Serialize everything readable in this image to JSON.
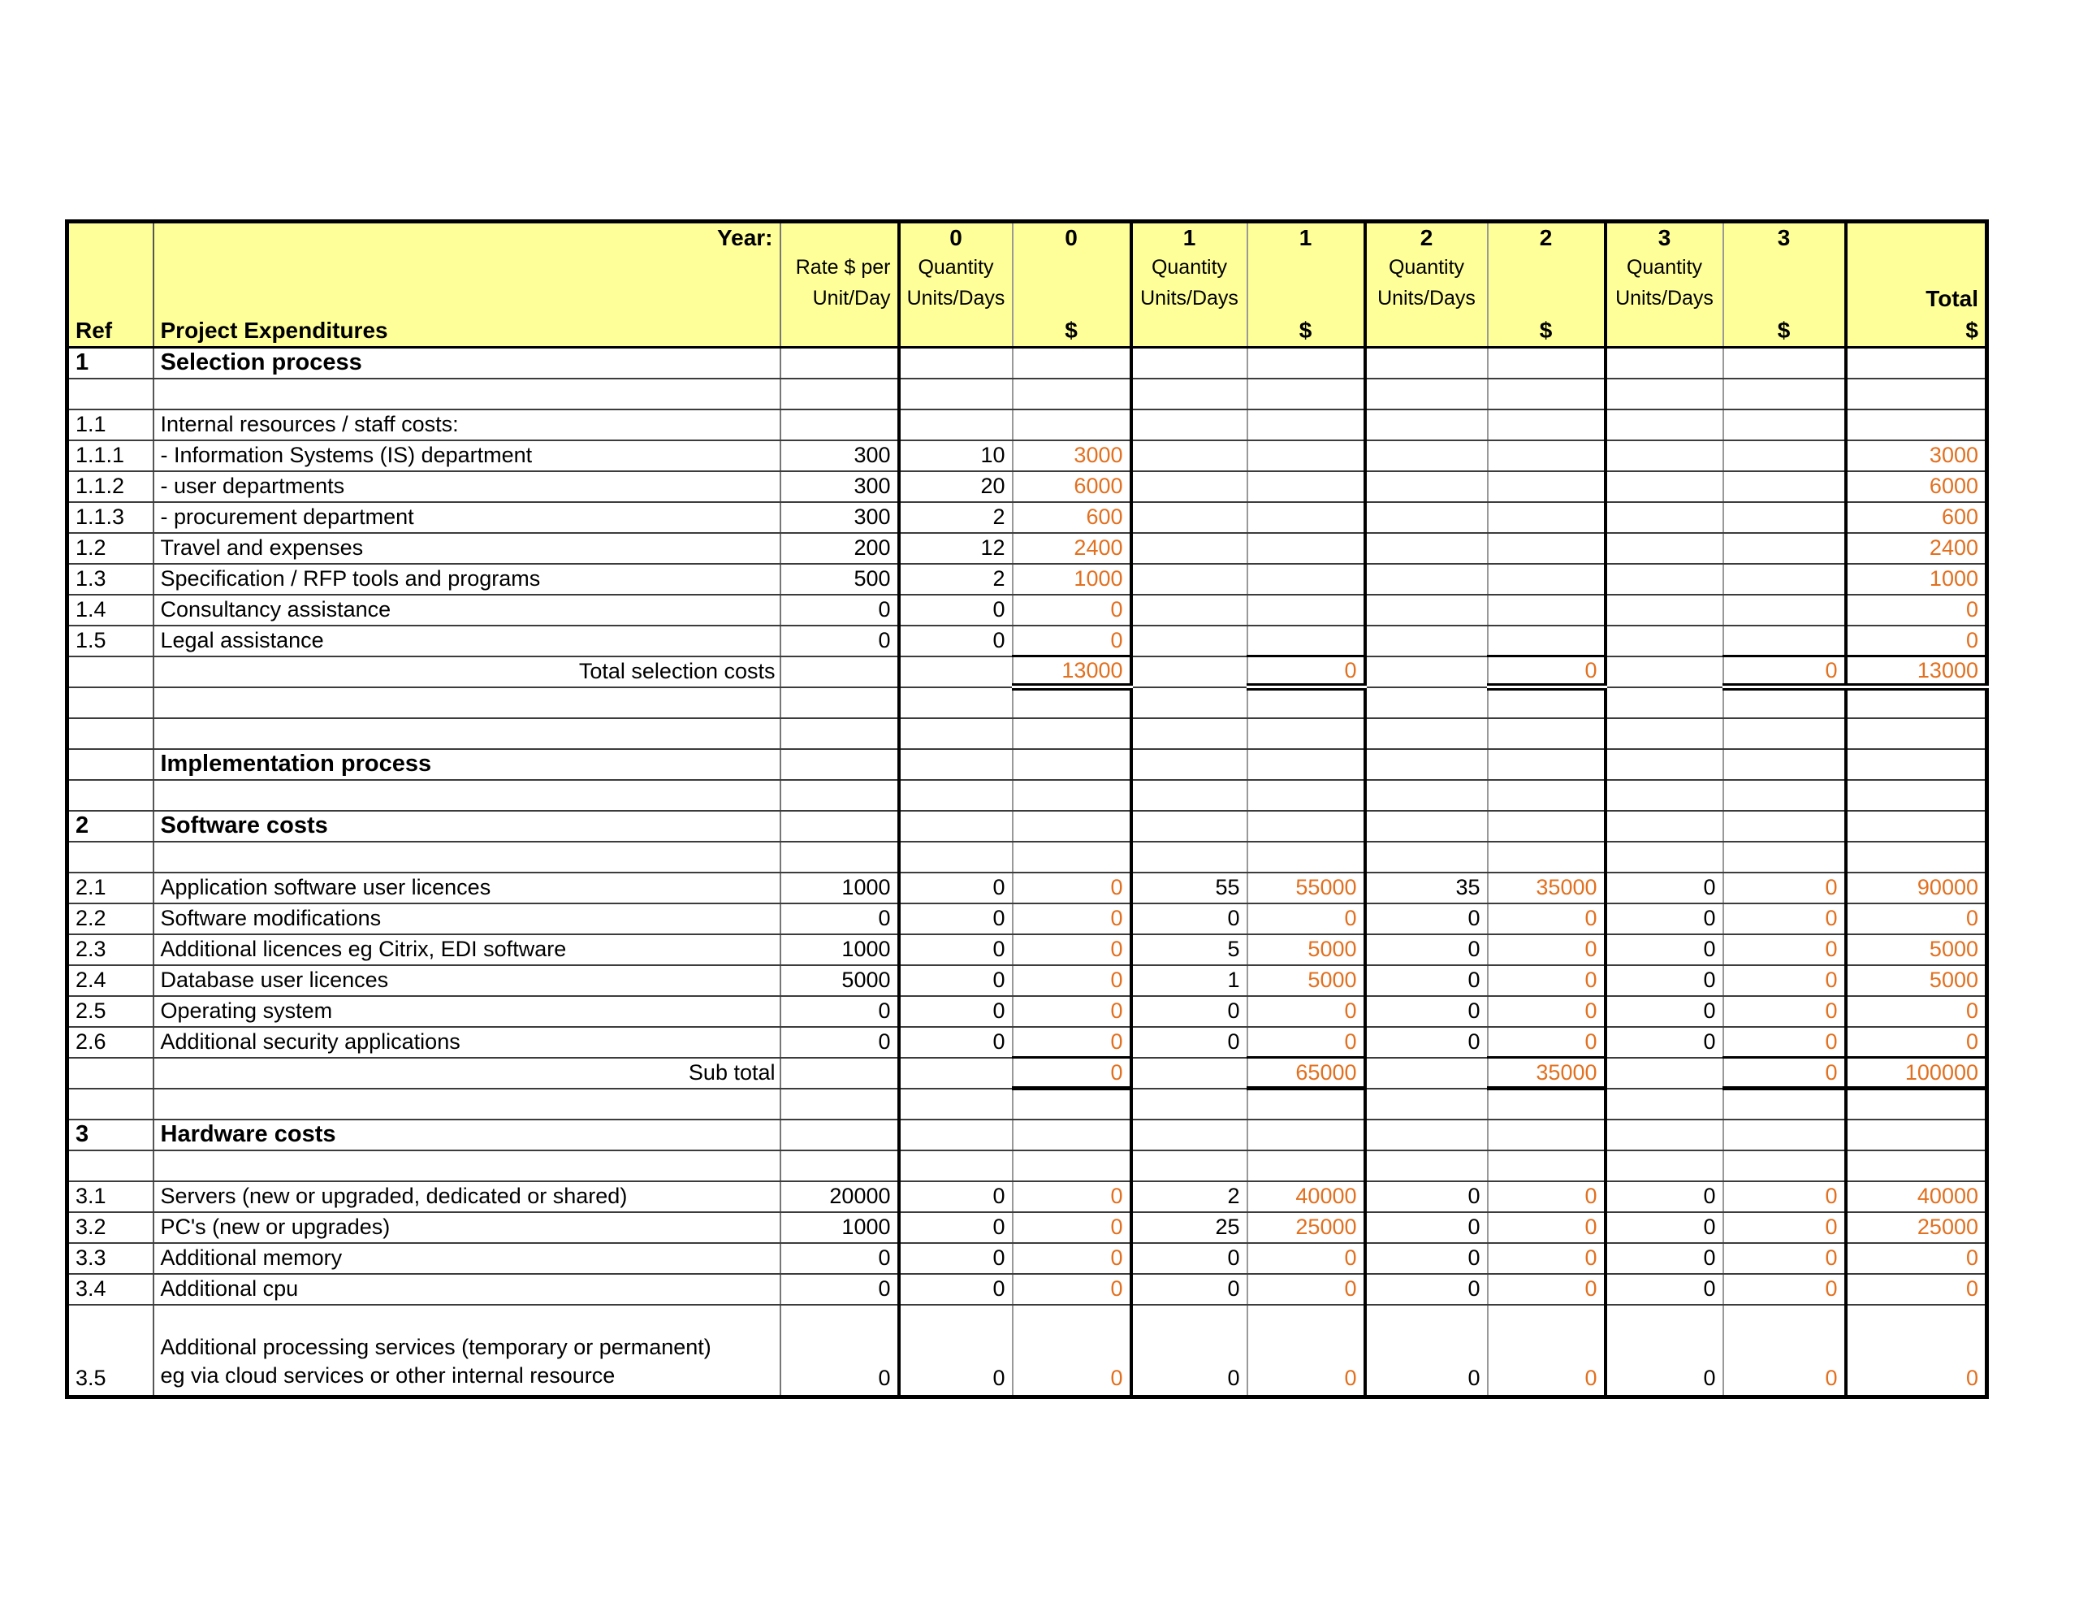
{
  "colors": {
    "header_bg": "#FFFF99",
    "amount": "#E2701F"
  },
  "header": {
    "year_label": "Year:",
    "year_numbers": [
      "0",
      "0",
      "1",
      "1",
      "2",
      "2",
      "3",
      "3"
    ],
    "rate_line1": "Rate $ per",
    "rate_line2": "Unit/Day",
    "quantity_line1": "Quantity",
    "quantity_line2": "Units/Days",
    "dollar": "$",
    "total_label": "Total",
    "ref_label": "Ref",
    "expenditures_label": "Project Expenditures"
  },
  "table": {
    "rows": [
      {
        "kind": "section",
        "ref": "1",
        "desc": "Selection process",
        "rate": "",
        "y0q": "",
        "y0d": "",
        "y1q": "",
        "y1d": "",
        "y2q": "",
        "y2d": "",
        "y3q": "",
        "y3d": "",
        "total": ""
      },
      {
        "kind": "empty",
        "ref": "",
        "desc": "",
        "rate": "",
        "y0q": "",
        "y0d": "",
        "y1q": "",
        "y1d": "",
        "y2q": "",
        "y2d": "",
        "y3q": "",
        "y3d": "",
        "total": ""
      },
      {
        "kind": "plain",
        "ref": "1.1",
        "desc": "Internal resources / staff costs:",
        "rate": "",
        "y0q": "",
        "y0d": "",
        "y1q": "",
        "y1d": "",
        "y2q": "",
        "y2d": "",
        "y3q": "",
        "y3d": "",
        "total": ""
      },
      {
        "kind": "item",
        "ref": "1.1.1",
        "desc": "- Information Systems (IS) department",
        "rate": "300",
        "y0q": "10",
        "y0d": "3000",
        "y1q": "",
        "y1d": "",
        "y2q": "",
        "y2d": "",
        "y3q": "",
        "y3d": "",
        "total": "3000"
      },
      {
        "kind": "item",
        "ref": "1.1.2",
        "desc": "- user departments",
        "rate": "300",
        "y0q": "20",
        "y0d": "6000",
        "y1q": "",
        "y1d": "",
        "y2q": "",
        "y2d": "",
        "y3q": "",
        "y3d": "",
        "total": "6000"
      },
      {
        "kind": "item",
        "ref": "1.1.3",
        "desc": "- procurement department",
        "rate": "300",
        "y0q": "2",
        "y0d": "600",
        "y1q": "",
        "y1d": "",
        "y2q": "",
        "y2d": "",
        "y3q": "",
        "y3d": "",
        "total": "600"
      },
      {
        "kind": "item",
        "ref": "1.2",
        "desc": "Travel and expenses",
        "rate": "200",
        "y0q": "12",
        "y0d": "2400",
        "y1q": "",
        "y1d": "",
        "y2q": "",
        "y2d": "",
        "y3q": "",
        "y3d": "",
        "total": "2400"
      },
      {
        "kind": "item",
        "ref": "1.3",
        "desc": "Specification / RFP tools and programs",
        "rate": "500",
        "y0q": "2",
        "y0d": "1000",
        "y1q": "",
        "y1d": "",
        "y2q": "",
        "y2d": "",
        "y3q": "",
        "y3d": "",
        "total": "1000"
      },
      {
        "kind": "item",
        "ref": "1.4",
        "desc": "Consultancy assistance",
        "rate": "0",
        "y0q": "0",
        "y0d": "0",
        "y1q": "",
        "y1d": "",
        "y2q": "",
        "y2d": "",
        "y3q": "",
        "y3d": "",
        "total": "0"
      },
      {
        "kind": "item",
        "ref": "1.5",
        "desc": "Legal assistance",
        "rate": "0",
        "y0q": "0",
        "y0d": "0",
        "y1q": "",
        "y1d": "",
        "y2q": "",
        "y2d": "",
        "y3q": "",
        "y3d": "",
        "total": "0"
      },
      {
        "kind": "total",
        "ref": "",
        "desc": "Total selection costs",
        "rate": "",
        "y0q": "",
        "y0d": "13000",
        "y1q": "",
        "y1d": "0",
        "y2q": "",
        "y2d": "0",
        "y3q": "",
        "y3d": "0",
        "total": "13000"
      },
      {
        "kind": "empty",
        "ref": "",
        "desc": "",
        "rate": "",
        "y0q": "",
        "y0d": "",
        "y1q": "",
        "y1d": "",
        "y2q": "",
        "y2d": "",
        "y3q": "",
        "y3d": "",
        "total": ""
      },
      {
        "kind": "empty",
        "ref": "",
        "desc": "",
        "rate": "",
        "y0q": "",
        "y0d": "",
        "y1q": "",
        "y1d": "",
        "y2q": "",
        "y2d": "",
        "y3q": "",
        "y3d": "",
        "total": ""
      },
      {
        "kind": "section",
        "ref": "",
        "desc": "Implementation process",
        "rate": "",
        "y0q": "",
        "y0d": "",
        "y1q": "",
        "y1d": "",
        "y2q": "",
        "y2d": "",
        "y3q": "",
        "y3d": "",
        "total": ""
      },
      {
        "kind": "empty",
        "ref": "",
        "desc": "",
        "rate": "",
        "y0q": "",
        "y0d": "",
        "y1q": "",
        "y1d": "",
        "y2q": "",
        "y2d": "",
        "y3q": "",
        "y3d": "",
        "total": ""
      },
      {
        "kind": "section",
        "ref": "2",
        "desc": "Software costs",
        "rate": "",
        "y0q": "",
        "y0d": "",
        "y1q": "",
        "y1d": "",
        "y2q": "",
        "y2d": "",
        "y3q": "",
        "y3d": "",
        "total": ""
      },
      {
        "kind": "empty",
        "ref": "",
        "desc": "",
        "rate": "",
        "y0q": "",
        "y0d": "",
        "y1q": "",
        "y1d": "",
        "y2q": "",
        "y2d": "",
        "y3q": "",
        "y3d": "",
        "total": ""
      },
      {
        "kind": "item",
        "ref": "2.1",
        "desc": "Application software user licences",
        "rate": "1000",
        "y0q": "0",
        "y0d": "0",
        "y1q": "55",
        "y1d": "55000",
        "y2q": "35",
        "y2d": "35000",
        "y3q": "0",
        "y3d": "0",
        "total": "90000"
      },
      {
        "kind": "item",
        "ref": "2.2",
        "desc": "Software modifications",
        "rate": "0",
        "y0q": "0",
        "y0d": "0",
        "y1q": "0",
        "y1d": "0",
        "y2q": "0",
        "y2d": "0",
        "y3q": "0",
        "y3d": "0",
        "total": "0"
      },
      {
        "kind": "item",
        "ref": "2.3",
        "desc": "Additional licences eg Citrix, EDI software",
        "rate": "1000",
        "y0q": "0",
        "y0d": "0",
        "y1q": "5",
        "y1d": "5000",
        "y2q": "0",
        "y2d": "0",
        "y3q": "0",
        "y3d": "0",
        "total": "5000"
      },
      {
        "kind": "item",
        "ref": "2.4",
        "desc": "Database user licences",
        "rate": "5000",
        "y0q": "0",
        "y0d": "0",
        "y1q": "1",
        "y1d": "5000",
        "y2q": "0",
        "y2d": "0",
        "y3q": "0",
        "y3d": "0",
        "total": "5000"
      },
      {
        "kind": "item",
        "ref": "2.5",
        "desc": "Operating system",
        "rate": "0",
        "y0q": "0",
        "y0d": "0",
        "y1q": "0",
        "y1d": "0",
        "y2q": "0",
        "y2d": "0",
        "y3q": "0",
        "y3d": "0",
        "total": "0"
      },
      {
        "kind": "item",
        "ref": "2.6",
        "desc": "Additional security applications",
        "rate": "0",
        "y0q": "0",
        "y0d": "0",
        "y1q": "0",
        "y1d": "0",
        "y2q": "0",
        "y2d": "0",
        "y3q": "0",
        "y3d": "0",
        "total": "0"
      },
      {
        "kind": "subtotal",
        "ref": "",
        "desc": "Sub total",
        "rate": "",
        "y0q": "",
        "y0d": "0",
        "y1q": "",
        "y1d": "65000",
        "y2q": "",
        "y2d": "35000",
        "y3q": "",
        "y3d": "0",
        "total": "100000"
      },
      {
        "kind": "empty",
        "ref": "",
        "desc": "",
        "rate": "",
        "y0q": "",
        "y0d": "",
        "y1q": "",
        "y1d": "",
        "y2q": "",
        "y2d": "",
        "y3q": "",
        "y3d": "",
        "total": ""
      },
      {
        "kind": "section",
        "ref": "3",
        "desc": "Hardware costs",
        "rate": "",
        "y0q": "",
        "y0d": "",
        "y1q": "",
        "y1d": "",
        "y2q": "",
        "y2d": "",
        "y3q": "",
        "y3d": "",
        "total": ""
      },
      {
        "kind": "empty",
        "ref": "",
        "desc": "",
        "rate": "",
        "y0q": "",
        "y0d": "",
        "y1q": "",
        "y1d": "",
        "y2q": "",
        "y2d": "",
        "y3q": "",
        "y3d": "",
        "total": ""
      },
      {
        "kind": "item",
        "ref": "3.1",
        "desc": "Servers (new or upgraded, dedicated or shared)",
        "rate": "20000",
        "y0q": "0",
        "y0d": "0",
        "y1q": "2",
        "y1d": "40000",
        "y2q": "0",
        "y2d": "0",
        "y3q": "0",
        "y3d": "0",
        "total": "40000"
      },
      {
        "kind": "item",
        "ref": "3.2",
        "desc": "PC's (new or upgrades)",
        "rate": "1000",
        "y0q": "0",
        "y0d": "0",
        "y1q": "25",
        "y1d": "25000",
        "y2q": "0",
        "y2d": "0",
        "y3q": "0",
        "y3d": "0",
        "total": "25000"
      },
      {
        "kind": "item",
        "ref": "3.3",
        "desc": "Additional memory",
        "rate": "0",
        "y0q": "0",
        "y0d": "0",
        "y1q": "0",
        "y1d": "0",
        "y2q": "0",
        "y2d": "0",
        "y3q": "0",
        "y3d": "0",
        "total": "0"
      },
      {
        "kind": "item",
        "ref": "3.4",
        "desc": "Additional cpu",
        "rate": "0",
        "y0q": "0",
        "y0d": "0",
        "y1q": "0",
        "y1d": "0",
        "y2q": "0",
        "y2d": "0",
        "y3q": "0",
        "y3d": "0",
        "total": "0"
      },
      {
        "kind": "tall",
        "ref": "3.5",
        "desc": "Additional processing services (temporary or permanent)",
        "desc2": "eg via cloud services or other internal resource",
        "rate": "0",
        "y0q": "0",
        "y0d": "0",
        "y1q": "0",
        "y1d": "0",
        "y2q": "0",
        "y2d": "0",
        "y3q": "0",
        "y3d": "0",
        "total": "0"
      }
    ]
  }
}
